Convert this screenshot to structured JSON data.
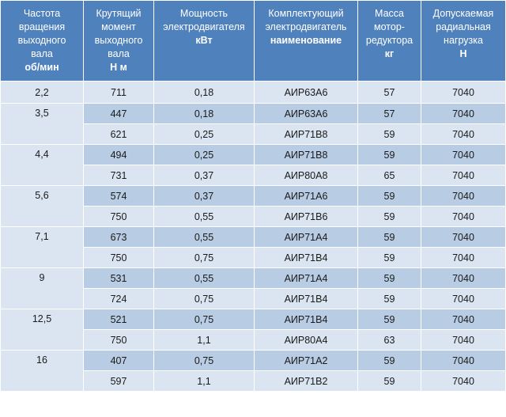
{
  "headers": [
    {
      "lines": [
        "Частота",
        "вращения",
        "выходного",
        "вала"
      ],
      "unit": "об/мин"
    },
    {
      "lines": [
        "Крутящий",
        "момент",
        "выходного",
        "вала"
      ],
      "unit": "Н м"
    },
    {
      "lines": [
        "Мощность",
        "электродвигателя"
      ],
      "unit": "кВт"
    },
    {
      "lines": [
        "Комплектующий",
        "электродвигатель"
      ],
      "unit": "наименование"
    },
    {
      "lines": [
        "Масса",
        "мотор-",
        "редуктора"
      ],
      "unit": "кг"
    },
    {
      "lines": [
        "Допускаемая",
        "радиальная",
        "нагрузка"
      ],
      "unit": "Н"
    }
  ],
  "groups": [
    {
      "speed": "2,2",
      "rows": [
        {
          "torque": "711",
          "power": "0,18",
          "motor": "АИР63А6",
          "mass": "57",
          "load": "7040"
        }
      ]
    },
    {
      "speed": "3,5",
      "rows": [
        {
          "torque": "447",
          "power": "0,18",
          "motor": "АИР63А6",
          "mass": "57",
          "load": "7040"
        },
        {
          "torque": "621",
          "power": "0,25",
          "motor": "АИР71В8",
          "mass": "59",
          "load": "7040"
        }
      ]
    },
    {
      "speed": "4,4",
      "rows": [
        {
          "torque": "494",
          "power": "0,25",
          "motor": "АИР71В8",
          "mass": "59",
          "load": "7040"
        },
        {
          "torque": "731",
          "power": "0,37",
          "motor": "АИР80А8",
          "mass": "65",
          "load": "7040"
        }
      ]
    },
    {
      "speed": "5,6",
      "rows": [
        {
          "torque": "574",
          "power": "0,37",
          "motor": "АИР71А6",
          "mass": "59",
          "load": "7040"
        },
        {
          "torque": "750",
          "power": "0,55",
          "motor": "АИР71В6",
          "mass": "59",
          "load": "7040"
        }
      ]
    },
    {
      "speed": "7,1",
      "rows": [
        {
          "torque": "673",
          "power": "0,55",
          "motor": "АИР71А4",
          "mass": "59",
          "load": "7040"
        },
        {
          "torque": "750",
          "power": "0,75",
          "motor": "АИР71В4",
          "mass": "59",
          "load": "7040"
        }
      ]
    },
    {
      "speed": "9",
      "rows": [
        {
          "torque": "531",
          "power": "0,55",
          "motor": "АИР71А4",
          "mass": "59",
          "load": "7040"
        },
        {
          "torque": "724",
          "power": "0,75",
          "motor": "АИР71В4",
          "mass": "59",
          "load": "7040"
        }
      ]
    },
    {
      "speed": "12,5",
      "rows": [
        {
          "torque": "521",
          "power": "0,75",
          "motor": "АИР71В4",
          "mass": "59",
          "load": "7040"
        },
        {
          "torque": "750",
          "power": "1,1",
          "motor": "АИР80А4",
          "mass": "63",
          "load": "7040"
        }
      ]
    },
    {
      "speed": "16",
      "rows": [
        {
          "torque": "407",
          "power": "0,75",
          "motor": "АИР71А2",
          "mass": "59",
          "load": "7040"
        },
        {
          "torque": "597",
          "power": "1,1",
          "motor": "АИР71В2",
          "mass": "59",
          "load": "7040"
        }
      ]
    }
  ]
}
